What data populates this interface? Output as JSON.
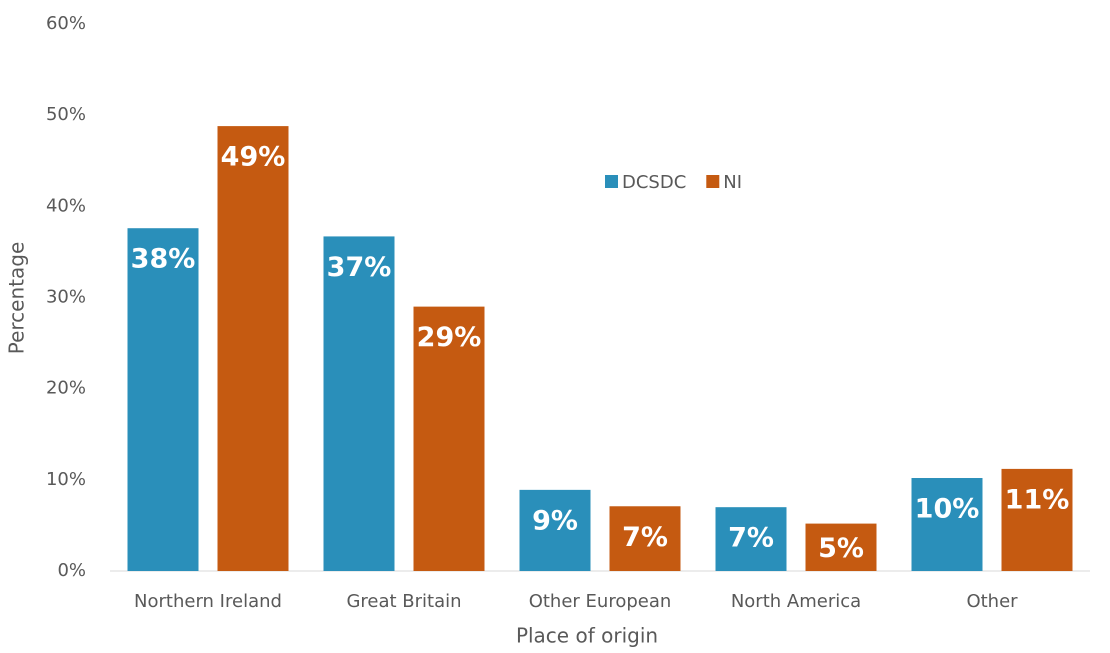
{
  "chart_data": {
    "type": "bar",
    "x_label": "Place of origin",
    "y_label": "Percentage",
    "categories": [
      "Northern Ireland",
      "Great Britain",
      "Other European",
      "North America",
      "Other"
    ],
    "series": [
      {
        "name": "DCSDC",
        "color": "#2a8fba",
        "values": [
          37.6,
          36.7,
          8.9,
          7,
          10.2
        ],
        "value_labels": [
          "38%",
          "37%",
          "9%",
          "7%",
          "10%"
        ]
      },
      {
        "name": "NI",
        "color": "#c55a11",
        "values": [
          48.8,
          29,
          7.1,
          5.2,
          11.2
        ],
        "value_labels": [
          "49%",
          "29%",
          "7%",
          "5%",
          "11%"
        ]
      }
    ],
    "ylim": [
      0,
      60
    ],
    "yticks": [
      {
        "value": 0,
        "label": "0%"
      },
      {
        "value": 10,
        "label": "10%"
      },
      {
        "value": 20,
        "label": "20%"
      },
      {
        "value": 30,
        "label": "30%"
      },
      {
        "value": 40,
        "label": "40%"
      },
      {
        "value": 50,
        "label": "50%"
      },
      {
        "value": 60,
        "label": "60%"
      }
    ],
    "grid": false,
    "legend": "upper center"
  }
}
